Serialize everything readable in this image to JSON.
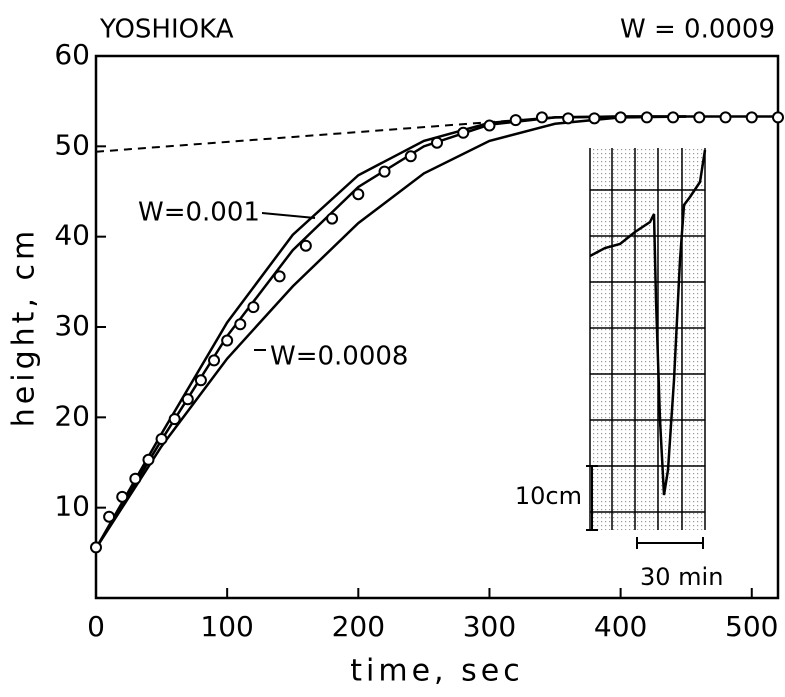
{
  "chart_data": {
    "type": "line",
    "title": "YOSHIOKA",
    "subtitle": "W = 0.0009",
    "x_label": "time, sec",
    "y_label": "height, cm",
    "xlim": [
      0,
      520
    ],
    "ylim": [
      0,
      60
    ],
    "xticks": [
      0,
      100,
      200,
      300,
      400,
      500
    ],
    "yticks": [
      10,
      20,
      30,
      40,
      50,
      60
    ],
    "series": [
      {
        "name": "W=0.001",
        "color": "#000000",
        "style": "solid",
        "x": [
          0,
          50,
          100,
          150,
          200,
          250,
          300,
          350,
          400,
          450
        ],
        "values": [
          5.5,
          18.2,
          30.5,
          40.2,
          46.8,
          50.6,
          52.6,
          53.2,
          53.3,
          53.3
        ]
      },
      {
        "color": "#000000",
        "style": "solid",
        "x": [
          0,
          50,
          100,
          150,
          200,
          250,
          300,
          350,
          400,
          450,
          520
        ],
        "values": [
          5.5,
          17.5,
          29,
          38.5,
          45.5,
          50,
          52.4,
          53.2,
          53.3,
          53.3,
          53.3
        ]
      },
      {
        "name": "W=0.0008",
        "color": "#000000",
        "style": "solid",
        "x": [
          0,
          50,
          100,
          150,
          200,
          250,
          300,
          350,
          400,
          450
        ],
        "values": [
          5.5,
          16.8,
          26.5,
          34.5,
          41.5,
          47,
          50.6,
          52.5,
          53.2,
          53.3
        ]
      },
      {
        "color": "#000000",
        "style": "dashed",
        "x": [
          0,
          330
        ],
        "values": [
          49.4,
          53
        ]
      },
      {
        "color": "#000000",
        "style": "markers",
        "x": [
          0,
          10,
          20,
          30,
          40,
          50,
          60,
          70,
          80,
          90,
          100,
          110,
          120,
          140,
          160,
          180,
          200,
          220,
          240,
          260,
          280,
          300,
          320,
          340,
          360,
          380,
          400,
          420,
          440,
          460,
          480,
          500,
          520
        ],
        "values": [
          5.6,
          9,
          11.2,
          13.2,
          15.3,
          17.6,
          19.8,
          22,
          24.1,
          26.3,
          28.5,
          30.3,
          32.2,
          35.6,
          39,
          42,
          44.7,
          47.2,
          48.9,
          50.4,
          51.5,
          52.3,
          52.9,
          53.2,
          53.1,
          53.1,
          53.2,
          53.2,
          53.2,
          53.2,
          53.2,
          53.2,
          53.2
        ]
      }
    ],
    "annotations": [
      "10cm",
      "30 min"
    ]
  }
}
